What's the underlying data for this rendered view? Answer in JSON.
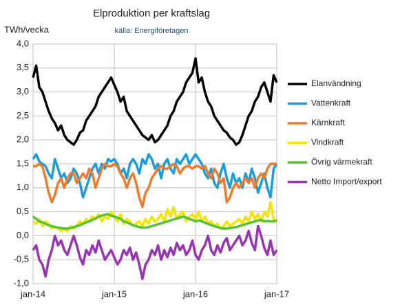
{
  "chart_data": {
    "type": "line",
    "title": "Elproduktion per kraftslag",
    "subtitle": "källa: Energiföretagen",
    "y_label": "TWh/vecka",
    "categories": [
      "jan-14",
      null,
      null,
      null,
      null,
      null,
      null,
      null,
      null,
      null,
      null,
      null,
      null,
      null,
      null,
      null,
      null,
      null,
      null,
      null,
      null,
      null,
      null,
      null,
      null,
      null,
      "jan-15",
      null,
      null,
      null,
      null,
      null,
      null,
      null,
      null,
      null,
      null,
      null,
      null,
      null,
      null,
      null,
      null,
      null,
      null,
      null,
      null,
      null,
      null,
      null,
      null,
      null,
      "jan-16",
      null,
      null,
      null,
      null,
      null,
      null,
      null,
      null,
      null,
      null,
      null,
      null,
      null,
      null,
      null,
      null,
      null,
      null,
      null,
      null,
      null,
      null,
      null,
      null,
      null,
      "jan-17"
    ],
    "ylim": [
      -1.0,
      4.0
    ],
    "yticks": [
      {
        "value": -1.0,
        "label": "-1,0"
      },
      {
        "value": -0.5,
        "label": "-0,5"
      },
      {
        "value": 0,
        "label": "0,0"
      },
      {
        "value": 0.5,
        "label": "0,5"
      },
      {
        "value": 1.0,
        "label": "1,0"
      },
      {
        "value": 1.5,
        "label": "1,5"
      },
      {
        "value": 2.0,
        "label": "2,0"
      },
      {
        "value": 2.5,
        "label": "2,5"
      },
      {
        "value": 3.0,
        "label": "3,0"
      },
      {
        "value": 3.5,
        "label": "3,5"
      },
      {
        "value": 4.0,
        "label": "4,0"
      }
    ],
    "grid": true,
    "legend": "right",
    "series": [
      {
        "name": "Elanvändning",
        "color": "#000000",
        "values": [
          3.3,
          3.55,
          3.1,
          3.0,
          2.8,
          2.6,
          2.45,
          2.35,
          2.2,
          2.3,
          2.1,
          2.0,
          1.95,
          1.9,
          2.0,
          2.15,
          2.2,
          2.4,
          2.5,
          2.6,
          2.7,
          2.9,
          3.0,
          3.1,
          3.2,
          3.3,
          3.15,
          3.0,
          2.8,
          2.9,
          2.6,
          2.5,
          2.4,
          2.3,
          2.2,
          2.1,
          2.05,
          2.0,
          2.1,
          1.95,
          2.0,
          2.1,
          2.2,
          2.3,
          2.5,
          2.6,
          2.8,
          2.9,
          3.0,
          3.2,
          3.3,
          3.4,
          3.7,
          3.2,
          3.3,
          3.0,
          2.8,
          2.7,
          2.5,
          2.4,
          2.3,
          2.2,
          2.15,
          2.05,
          2.0,
          1.9,
          1.95,
          2.1,
          2.3,
          2.5,
          2.6,
          2.8,
          2.9,
          3.1,
          3.2,
          3.0,
          2.8,
          3.35,
          3.2
        ]
      },
      {
        "name": "Vattenkraft",
        "color": "#1a9ddb",
        "values": [
          1.6,
          1.7,
          1.55,
          1.5,
          1.45,
          1.3,
          1.2,
          1.6,
          1.4,
          1.2,
          1.3,
          1.1,
          1.2,
          1.4,
          1.3,
          1.1,
          0.8,
          1.0,
          1.2,
          1.4,
          1.5,
          1.3,
          1.5,
          1.4,
          1.6,
          1.55,
          1.6,
          1.5,
          1.3,
          1.4,
          1.2,
          1.5,
          1.6,
          1.5,
          1.3,
          1.6,
          1.5,
          1.7,
          1.6,
          1.4,
          1.5,
          1.2,
          1.5,
          1.6,
          1.4,
          1.3,
          1.6,
          1.5,
          1.6,
          1.7,
          1.5,
          1.6,
          1.7,
          1.6,
          1.5,
          1.3,
          1.2,
          1.4,
          1.1,
          1.0,
          1.3,
          1.5,
          1.2,
          1.0,
          1.3,
          1.1,
          1.2,
          1.0,
          1.3,
          1.1,
          1.4,
          1.2,
          0.9,
          1.1,
          1.3,
          1.0,
          0.8,
          1.4,
          1.5
        ]
      },
      {
        "name": "Kärnkraft",
        "color": "#f47a2a",
        "values": [
          1.45,
          1.45,
          1.5,
          1.45,
          1.2,
          0.9,
          0.7,
          0.85,
          1.1,
          1.2,
          1.0,
          1.2,
          1.3,
          1.3,
          1.1,
          1.2,
          1.3,
          1.2,
          1.4,
          1.3,
          1.0,
          1.2,
          1.4,
          1.5,
          1.45,
          1.45,
          1.5,
          1.45,
          1.3,
          1.2,
          1.0,
          1.2,
          1.3,
          1.1,
          0.8,
          0.6,
          0.9,
          1.0,
          1.2,
          1.3,
          1.4,
          1.45,
          1.4,
          1.4,
          1.45,
          1.5,
          1.45,
          1.3,
          1.4,
          1.45,
          1.45,
          1.4,
          1.45,
          1.45,
          1.4,
          1.45,
          1.3,
          1.2,
          1.4,
          1.3,
          1.1,
          1.2,
          0.7,
          0.8,
          1.0,
          1.1,
          1.0,
          1.1,
          1.2,
          1.1,
          1.2,
          1.0,
          1.2,
          1.3,
          1.2,
          1.4,
          1.5,
          1.5,
          1.5
        ]
      },
      {
        "name": "Vindkraft",
        "color": "#f5e400",
        "values": [
          0.3,
          0.25,
          0.35,
          0.2,
          0.3,
          0.25,
          0.15,
          0.2,
          0.15,
          0.1,
          0.15,
          0.1,
          0.2,
          0.15,
          0.2,
          0.3,
          0.25,
          0.35,
          0.3,
          0.4,
          0.35,
          0.45,
          0.3,
          0.4,
          0.35,
          0.5,
          0.4,
          0.3,
          0.45,
          0.25,
          0.35,
          0.3,
          0.2,
          0.25,
          0.3,
          0.2,
          0.35,
          0.25,
          0.4,
          0.3,
          0.35,
          0.45,
          0.3,
          0.55,
          0.4,
          0.6,
          0.35,
          0.45,
          0.5,
          0.3,
          0.4,
          0.45,
          0.35,
          0.5,
          0.3,
          0.4,
          0.25,
          0.3,
          0.2,
          0.25,
          0.15,
          0.2,
          0.3,
          0.2,
          0.25,
          0.3,
          0.35,
          0.25,
          0.4,
          0.3,
          0.5,
          0.35,
          0.45,
          0.3,
          0.5,
          0.4,
          0.7,
          0.35,
          0.3
        ]
      },
      {
        "name": "Övrig värmekraft",
        "color": "#57c234",
        "values": [
          0.4,
          0.35,
          0.3,
          0.28,
          0.25,
          0.22,
          0.2,
          0.18,
          0.17,
          0.16,
          0.15,
          0.15,
          0.16,
          0.18,
          0.2,
          0.22,
          0.25,
          0.28,
          0.3,
          0.33,
          0.36,
          0.4,
          0.42,
          0.44,
          0.45,
          0.42,
          0.4,
          0.38,
          0.35,
          0.3,
          0.28,
          0.25,
          0.22,
          0.2,
          0.18,
          0.17,
          0.17,
          0.18,
          0.2,
          0.22,
          0.24,
          0.26,
          0.28,
          0.3,
          0.32,
          0.34,
          0.36,
          0.38,
          0.4,
          0.38,
          0.35,
          0.33,
          0.3,
          0.32,
          0.3,
          0.27,
          0.25,
          0.22,
          0.2,
          0.18,
          0.16,
          0.15,
          0.15,
          0.16,
          0.17,
          0.18,
          0.2,
          0.22,
          0.24,
          0.26,
          0.28,
          0.3,
          0.32,
          0.33,
          0.3,
          0.31,
          0.3,
          0.3,
          0.32
        ]
      },
      {
        "name": "Netto Import/export",
        "color": "#9933b5",
        "values": [
          -0.3,
          -0.2,
          -0.5,
          -0.6,
          -0.85,
          -0.5,
          -0.3,
          0.0,
          -0.2,
          -0.1,
          -0.3,
          -0.4,
          -0.2,
          0.0,
          -0.2,
          -0.45,
          -0.6,
          -0.3,
          -0.4,
          -0.2,
          -0.35,
          -0.1,
          -0.3,
          -0.5,
          -0.4,
          -0.3,
          -0.45,
          -0.6,
          -0.5,
          -0.3,
          -0.4,
          -0.25,
          -0.5,
          -0.35,
          -0.6,
          -0.9,
          -0.6,
          -0.5,
          -0.3,
          -0.4,
          -0.2,
          -0.5,
          -0.3,
          -0.45,
          -0.25,
          -0.4,
          -0.15,
          -0.3,
          -0.2,
          -0.4,
          -0.3,
          -0.1,
          -0.4,
          -0.5,
          -0.3,
          -0.2,
          0.0,
          -0.3,
          -0.4,
          -0.2,
          -0.35,
          -0.15,
          -0.05,
          -0.3,
          -0.2,
          -0.1,
          0.0,
          -0.2,
          -0.1,
          0.1,
          -0.15,
          -0.3,
          0.2,
          0.0,
          -0.25,
          -0.4,
          -0.1,
          -0.4,
          -0.3
        ]
      }
    ]
  }
}
